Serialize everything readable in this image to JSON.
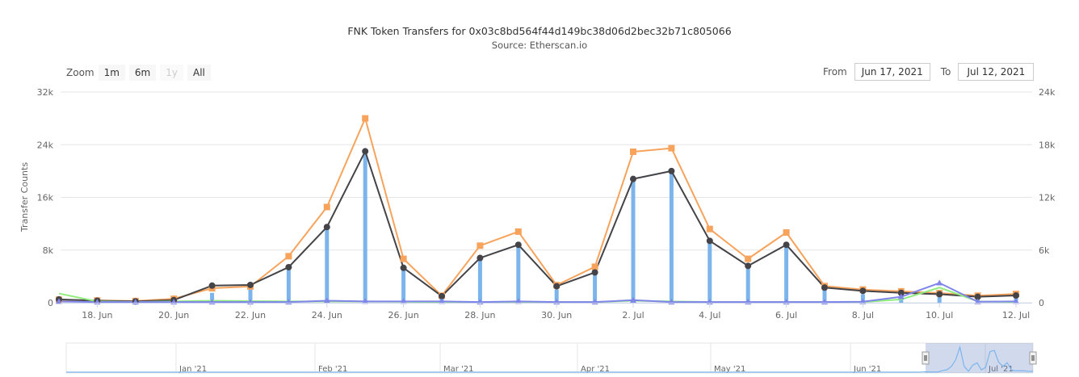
{
  "chart_data": {
    "type": "line",
    "title": "FNK Token Transfers for 0x03c8bd564f44d149bc38d06d2bec32b71c805066",
    "subtitle": "Source: Etherscan.io",
    "ylabel": "Transfer Counts",
    "y_left_ticks": [
      "0",
      "8k",
      "16k",
      "24k",
      "32k"
    ],
    "y_right_ticks": [
      "0",
      "6k",
      "12k",
      "18k",
      "24k"
    ],
    "ylim_left": [
      0,
      32000
    ],
    "ylim_right": [
      0,
      24000
    ],
    "x_tick_labels": [
      "18. Jun",
      "20. Jun",
      "22. Jun",
      "24. Jun",
      "26. Jun",
      "28. Jun",
      "30. Jun",
      "2. Jul",
      "4. Jul",
      "6. Jul",
      "8. Jul",
      "10. Jul",
      "12. Jul"
    ],
    "x": [
      "2021-06-17",
      "2021-06-18",
      "2021-06-19",
      "2021-06-20",
      "2021-06-21",
      "2021-06-22",
      "2021-06-23",
      "2021-06-24",
      "2021-06-25",
      "2021-06-26",
      "2021-06-27",
      "2021-06-28",
      "2021-06-29",
      "2021-06-30",
      "2021-07-01",
      "2021-07-02",
      "2021-07-03",
      "2021-07-04",
      "2021-07-05",
      "2021-07-06",
      "2021-07-07",
      "2021-07-08",
      "2021-07-09",
      "2021-07-10",
      "2021-07-11",
      "2021-07-12"
    ],
    "series": [
      {
        "axis": "left",
        "kind": "column",
        "color": "#7cb5ec",
        "values": [
          300,
          200,
          150,
          300,
          1500,
          2200,
          5200,
          11200,
          22800,
          5200,
          900,
          6500,
          8500,
          2000,
          4500,
          18700,
          19800,
          9200,
          5300,
          8600,
          1900,
          1300,
          1300,
          1200,
          700,
          900
        ]
      },
      {
        "axis": "right",
        "kind": "line",
        "color": "#f7a35c",
        "values": [
          350,
          260,
          200,
          450,
          1650,
          1850,
          5300,
          10900,
          21000,
          5000,
          800,
          6500,
          8100,
          2000,
          4100,
          17200,
          17600,
          8400,
          5000,
          8000,
          1900,
          1500,
          1300,
          1100,
          800,
          1000
        ]
      },
      {
        "axis": "left",
        "kind": "line",
        "color": "#434348",
        "values": [
          500,
          300,
          200,
          400,
          2600,
          2700,
          5400,
          11500,
          23000,
          5300,
          1000,
          6800,
          8800,
          2500,
          4600,
          18800,
          20000,
          9400,
          5600,
          8800,
          2300,
          1800,
          1500,
          1300,
          900,
          1100
        ]
      },
      {
        "axis": "left",
        "kind": "line",
        "color": "#90ed7d",
        "values": [
          1400,
          200,
          100,
          200,
          300,
          250,
          200,
          200,
          200,
          150,
          100,
          100,
          100,
          100,
          100,
          300,
          200,
          100,
          100,
          100,
          100,
          100,
          500,
          2300,
          200,
          100
        ]
      },
      {
        "axis": "left",
        "kind": "line",
        "color": "#8085e9",
        "values": [
          200,
          100,
          100,
          100,
          100,
          100,
          100,
          300,
          200,
          200,
          200,
          100,
          200,
          100,
          100,
          400,
          100,
          100,
          100,
          100,
          100,
          150,
          900,
          3000,
          150,
          200
        ]
      }
    ],
    "navigator": {
      "x_labels": [
        "Jan '21",
        "Feb '21",
        "Mar '21",
        "Apr '21",
        "May '21",
        "Jun '21",
        "Jul '21"
      ]
    },
    "grid": true
  },
  "controls": {
    "zoom_label": "Zoom",
    "zoom_buttons": [
      "1m",
      "6m",
      "1y",
      "All"
    ],
    "from_label": "From",
    "from_value": "Jun 17, 2021",
    "to_label": "To",
    "to_value": "Jul 12, 2021"
  }
}
